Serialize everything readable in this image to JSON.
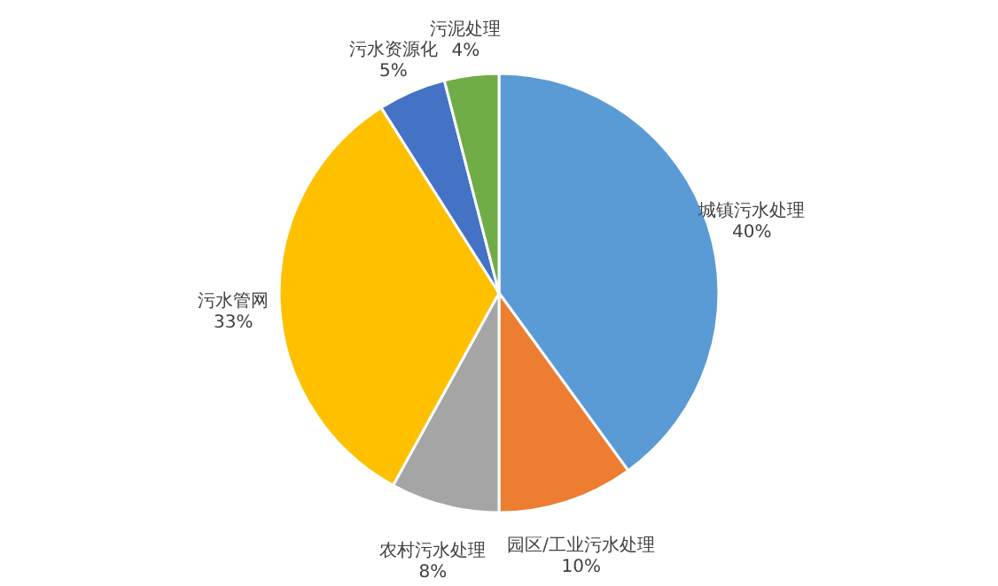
{
  "chart_data": {
    "type": "pie",
    "categories": [
      "城镇污水处理",
      "园区/工业污水处理",
      "农村污水处理",
      "污水管网",
      "污水资源化",
      "污泥处理"
    ],
    "values": [
      40,
      10,
      8,
      33,
      5,
      4
    ],
    "value_labels": [
      "40%",
      "10%",
      "8%",
      "33%",
      "5%",
      "4%"
    ],
    "colors": [
      "#5b9bd5",
      "#ed7d31",
      "#a5a5a5",
      "#ffc000",
      "#4472c4",
      "#70ad47"
    ]
  }
}
